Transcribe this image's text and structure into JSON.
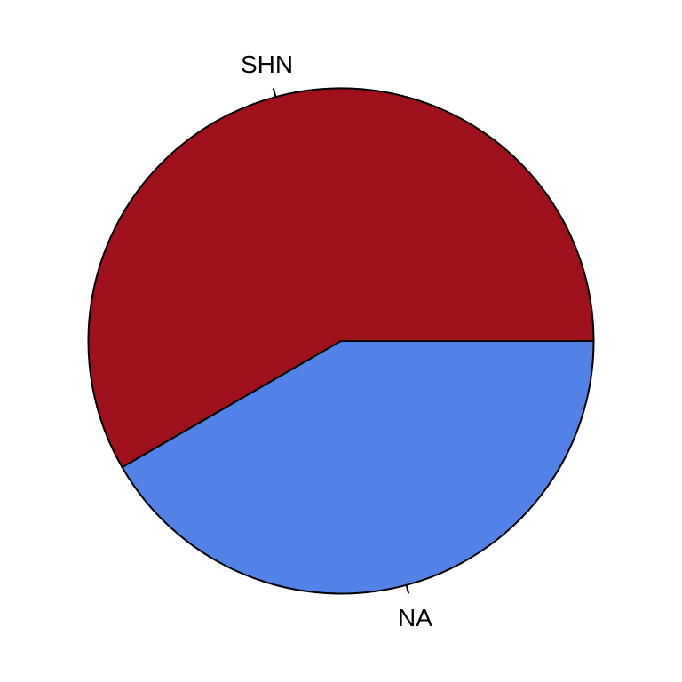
{
  "chart_data": {
    "type": "pie",
    "title": "",
    "labels": [
      "SHN",
      "NA"
    ],
    "values": [
      58.33,
      41.67
    ],
    "colors": [
      "#9e111a",
      "#5282e8"
    ],
    "start_angle_deg": 0,
    "direction": "counterclockwise",
    "legend": "none",
    "outline_color": "#000000"
  }
}
